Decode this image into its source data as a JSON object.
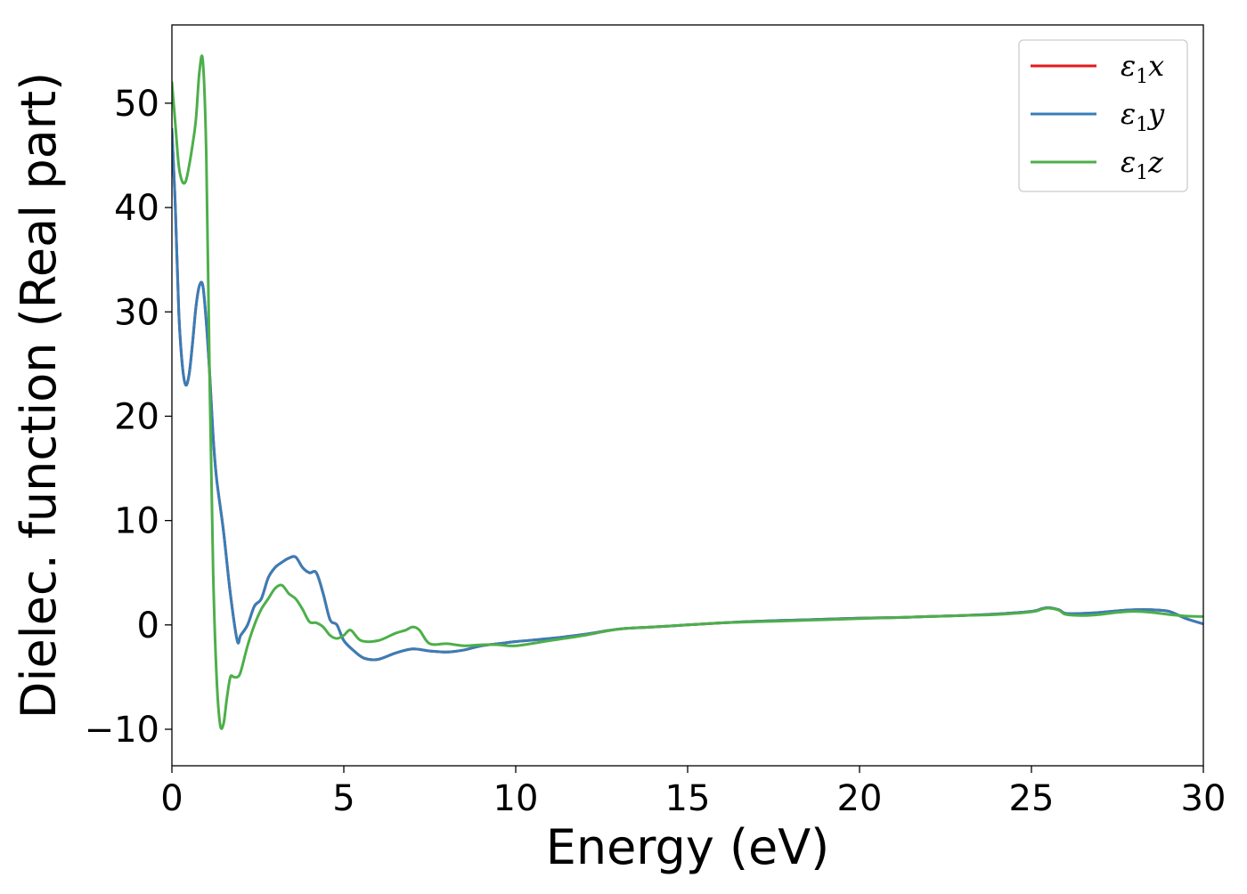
{
  "chart_data": {
    "type": "line",
    "title": "",
    "xlabel": "Energy (eV)",
    "ylabel": "Dielec. function (Real part)",
    "xlim": [
      0,
      30
    ],
    "ylim": [
      -13.5,
      57.5
    ],
    "xticks": [
      0,
      5,
      10,
      15,
      20,
      25,
      30
    ],
    "yticks": [
      -10,
      0,
      10,
      20,
      30,
      40,
      50
    ],
    "xtick_labels": [
      "0",
      "5",
      "10",
      "15",
      "20",
      "25",
      "30"
    ],
    "ytick_labels": [
      "−10",
      "0",
      "10",
      "20",
      "30",
      "40",
      "50"
    ],
    "grid": false,
    "legend": "top-right",
    "colors": {
      "eps_x": "#e41a1c",
      "eps_y": "#377eb8",
      "eps_z": "#4daf4a",
      "axes": "#000000",
      "legend_border": "#cccccc"
    },
    "series": [
      {
        "name": "ε1x",
        "legend_main": "ε",
        "legend_sub": "1",
        "legend_var": "x",
        "color": "#e41a1c",
        "x": [
          0,
          0.1,
          0.2,
          0.3,
          0.4,
          0.5,
          0.6,
          0.7,
          0.8,
          0.9,
          1.0,
          1.1,
          1.2,
          1.3,
          1.5,
          1.7,
          1.9,
          2.0,
          2.2,
          2.4,
          2.6,
          2.8,
          3.0,
          3.2,
          3.4,
          3.6,
          3.8,
          4.0,
          4.2,
          4.4,
          4.6,
          4.8,
          5.0,
          5.3,
          5.6,
          6.0,
          6.5,
          7.0,
          7.5,
          8.0,
          8.5,
          9.0,
          9.5,
          10,
          11,
          12,
          13,
          14,
          15,
          16,
          17,
          18,
          19,
          20,
          21,
          22,
          23,
          24,
          25,
          25.3,
          25.5,
          25.8,
          26,
          26.5,
          27,
          27.5,
          28,
          28.5,
          29,
          29.5,
          30
        ],
        "y": [
          47.5,
          40,
          30,
          25,
          23,
          24,
          27,
          30.5,
          32.5,
          32.5,
          29,
          24,
          18,
          14,
          9,
          3,
          -1.5,
          -1.0,
          0,
          1.8,
          2.5,
          4.5,
          5.5,
          6.0,
          6.4,
          6.5,
          5.5,
          5.0,
          5.0,
          3.0,
          0.5,
          0,
          -1.5,
          -2.5,
          -3.2,
          -3.3,
          -2.7,
          -2.3,
          -2.5,
          -2.6,
          -2.4,
          -2.0,
          -1.8,
          -1.6,
          -1.3,
          -0.9,
          -0.4,
          -0.2,
          0,
          0.2,
          0.35,
          0.45,
          0.55,
          0.65,
          0.7,
          0.8,
          0.9,
          1.05,
          1.3,
          1.55,
          1.65,
          1.45,
          1.1,
          1.1,
          1.2,
          1.35,
          1.45,
          1.45,
          1.3,
          0.6,
          0.1
        ]
      },
      {
        "name": "ε1y",
        "legend_main": "ε",
        "legend_sub": "1",
        "legend_var": "y",
        "color": "#377eb8",
        "x": [
          0,
          0.1,
          0.2,
          0.3,
          0.4,
          0.5,
          0.6,
          0.7,
          0.8,
          0.9,
          1.0,
          1.1,
          1.2,
          1.3,
          1.5,
          1.7,
          1.9,
          2.0,
          2.2,
          2.4,
          2.6,
          2.8,
          3.0,
          3.2,
          3.4,
          3.6,
          3.8,
          4.0,
          4.2,
          4.4,
          4.6,
          4.8,
          5.0,
          5.3,
          5.6,
          6.0,
          6.5,
          7.0,
          7.5,
          8.0,
          8.5,
          9.0,
          9.5,
          10,
          11,
          12,
          13,
          14,
          15,
          16,
          17,
          18,
          19,
          20,
          21,
          22,
          23,
          24,
          25,
          25.3,
          25.5,
          25.8,
          26,
          26.5,
          27,
          27.5,
          28,
          28.5,
          29,
          29.5,
          30
        ],
        "y": [
          47.5,
          40,
          30,
          25,
          23,
          24,
          27,
          30.5,
          32.5,
          32.5,
          29,
          24,
          18,
          14,
          9,
          3,
          -1.5,
          -1.0,
          0,
          1.8,
          2.5,
          4.5,
          5.5,
          6.0,
          6.4,
          6.5,
          5.5,
          5.0,
          5.0,
          3.0,
          0.5,
          0,
          -1.5,
          -2.5,
          -3.2,
          -3.3,
          -2.7,
          -2.3,
          -2.5,
          -2.6,
          -2.4,
          -2.0,
          -1.8,
          -1.6,
          -1.3,
          -0.9,
          -0.4,
          -0.2,
          0,
          0.2,
          0.35,
          0.45,
          0.55,
          0.65,
          0.7,
          0.8,
          0.9,
          1.05,
          1.3,
          1.55,
          1.65,
          1.45,
          1.1,
          1.1,
          1.2,
          1.35,
          1.45,
          1.45,
          1.3,
          0.6,
          0.1
        ]
      },
      {
        "name": "ε1z",
        "legend_main": "ε",
        "legend_sub": "1",
        "legend_var": "z",
        "color": "#4daf4a",
        "x": [
          0,
          0.1,
          0.2,
          0.3,
          0.4,
          0.5,
          0.6,
          0.7,
          0.8,
          0.9,
          1.0,
          1.1,
          1.2,
          1.3,
          1.4,
          1.5,
          1.6,
          1.7,
          1.8,
          1.9,
          2.0,
          2.2,
          2.4,
          2.6,
          2.8,
          3.0,
          3.2,
          3.4,
          3.6,
          3.8,
          4.0,
          4.2,
          4.4,
          4.6,
          4.8,
          5.0,
          5.2,
          5.5,
          6.0,
          6.5,
          6.8,
          7.0,
          7.2,
          7.5,
          8.0,
          8.5,
          9.0,
          9.5,
          10,
          11,
          12,
          13,
          14,
          15,
          16,
          17,
          18,
          19,
          20,
          21,
          22,
          23,
          24,
          25,
          25.3,
          25.5,
          25.8,
          26,
          26.5,
          27,
          27.5,
          28,
          28.5,
          29,
          29.5,
          30
        ],
        "y": [
          52,
          48,
          44,
          42.5,
          42.5,
          44,
          46,
          48.5,
          53,
          54,
          45,
          23,
          5,
          -5,
          -9.5,
          -9.5,
          -7,
          -5,
          -5,
          -5,
          -4.5,
          -2,
          0,
          1.5,
          2.5,
          3.5,
          3.8,
          3.0,
          2.5,
          1.5,
          0.3,
          0.2,
          -0.2,
          -1.0,
          -1.3,
          -1.0,
          -0.5,
          -1.5,
          -1.5,
          -0.8,
          -0.5,
          -0.2,
          -0.5,
          -1.8,
          -1.8,
          -2.0,
          -1.9,
          -1.9,
          -2.0,
          -1.5,
          -1.0,
          -0.4,
          -0.2,
          0,
          0.2,
          0.3,
          0.4,
          0.5,
          0.6,
          0.7,
          0.8,
          0.9,
          1.0,
          1.25,
          1.5,
          1.6,
          1.4,
          1.0,
          0.9,
          1.0,
          1.2,
          1.3,
          1.2,
          1.0,
          0.85,
          0.8
        ]
      }
    ]
  }
}
